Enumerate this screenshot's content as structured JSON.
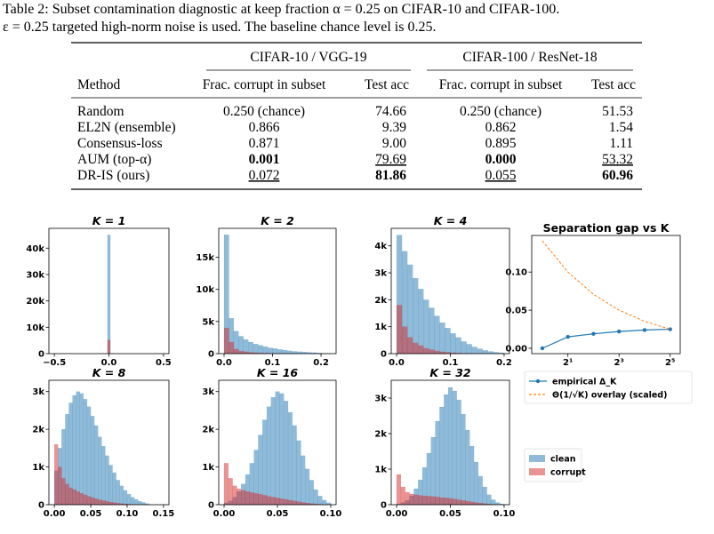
{
  "caption_lines": [
    "Table 2: Subset contamination diagnostic at keep fraction α = 0.25 on CIFAR-10 and CIFAR-100.",
    "ε = 0.25 targeted high-norm noise is used. The baseline chance level is 0.25."
  ],
  "table": {
    "groups": [
      "CIFAR-10 / VGG-19",
      "CIFAR-100 / ResNet-18"
    ],
    "header": [
      "Method",
      "Frac. corrupt in subset",
      "Test acc",
      "Frac. corrupt in subset",
      "Test acc"
    ],
    "rows": [
      [
        "Random",
        "0.250 (chance)",
        "74.66",
        "0.250 (chance)",
        "51.53"
      ],
      [
        "EL2N (ensemble)",
        "0.866",
        "9.39",
        "0.862",
        "1.54"
      ],
      [
        "Consensus-loss",
        "0.871",
        "9.00",
        "0.895",
        "1.11"
      ],
      [
        "AUM (top-α)",
        "0.001",
        "79.69",
        "0.000",
        "53.32"
      ],
      [
        "DR-IS (ours)",
        "0.072",
        "81.86",
        "0.055",
        "60.96"
      ]
    ],
    "bold": [
      [
        3,
        1
      ],
      [
        3,
        3
      ],
      [
        4,
        2
      ],
      [
        4,
        4
      ]
    ],
    "underline": [
      [
        3,
        2
      ],
      [
        3,
        4
      ],
      [
        4,
        1
      ],
      [
        4,
        3
      ]
    ]
  },
  "chart_data": [
    {
      "type": "histogram",
      "title": "K = 1",
      "alpha": 0.5,
      "bins": [
        -0.0125,
        0.0125
      ],
      "series": [
        {
          "color": "#1f77b4",
          "values": [
            45000
          ]
        },
        {
          "color": "#d62728",
          "values": [
            5200
          ]
        }
      ],
      "xlim": [
        -0.55,
        0.55
      ],
      "xticks": [
        {
          "value": -0.5,
          "label": "−0.5"
        },
        {
          "value": 0,
          "label": "0.0"
        },
        0.5
      ],
      "ylim": [
        0,
        47500
      ],
      "yticks": [
        0,
        {
          "value": 10000,
          "label": "10k"
        },
        {
          "value": 20000,
          "label": "20k"
        },
        {
          "value": 30000,
          "label": "30k"
        },
        {
          "value": 40000,
          "label": "40k"
        }
      ]
    },
    {
      "type": "histogram",
      "title": "K = 2",
      "alpha": 0.5,
      "bins": [
        0,
        0.01,
        0.02,
        0.03,
        0.04,
        0.05,
        0.06,
        0.07,
        0.08,
        0.09,
        0.1,
        0.11,
        0.12,
        0.13,
        0.14,
        0.15,
        0.16,
        0.17,
        0.18,
        0.19,
        0.2,
        0.21,
        0.22
      ],
      "series": [
        {
          "color": "#1f77b4",
          "values": [
            18500,
            5500,
            3500,
            2700,
            2200,
            1800,
            1500,
            1300,
            1100,
            900,
            800,
            650,
            550,
            450,
            350,
            300,
            250,
            200,
            150,
            100,
            60,
            30
          ]
        },
        {
          "color": "#d62728",
          "values": [
            4000,
            1800,
            700,
            400,
            300,
            200,
            150,
            100,
            80,
            60,
            40,
            30,
            20,
            10,
            5,
            0,
            0,
            0,
            0,
            0,
            0,
            0
          ]
        }
      ],
      "xlim": [
        -0.011,
        0.231
      ],
      "xticks": [
        {
          "value": 0,
          "label": "0.0"
        },
        0.1,
        0.2
      ],
      "ylim": [
        0,
        19500
      ],
      "yticks": [
        0,
        {
          "value": 5000,
          "label": "5k"
        },
        {
          "value": 10000,
          "label": "10k"
        },
        {
          "value": 15000,
          "label": "15k"
        }
      ]
    },
    {
      "type": "histogram",
      "title": "K = 4",
      "alpha": 0.5,
      "bins": [
        0,
        0.01,
        0.02,
        0.03,
        0.04,
        0.05,
        0.06,
        0.07,
        0.08,
        0.09,
        0.1,
        0.11,
        0.12,
        0.13,
        0.14,
        0.15,
        0.16,
        0.17,
        0.18,
        0.19,
        0.2
      ],
      "series": [
        {
          "color": "#1f77b4",
          "values": [
            4400,
            3800,
            3300,
            2800,
            2400,
            2000,
            1700,
            1400,
            1150,
            950,
            750,
            600,
            450,
            350,
            250,
            180,
            120,
            80,
            50,
            30
          ]
        },
        {
          "color": "#d62728",
          "values": [
            1800,
            1000,
            600,
            400,
            300,
            200,
            150,
            100,
            70,
            50,
            30,
            20,
            10,
            5,
            0,
            0,
            0,
            0,
            0,
            0
          ]
        }
      ],
      "xlim": [
        -0.01,
        0.21
      ],
      "xticks": [
        {
          "value": 0,
          "label": "0.0"
        },
        0.1,
        0.2
      ],
      "ylim": [
        0,
        4650
      ],
      "yticks": [
        0,
        {
          "value": 1000,
          "label": "1k"
        },
        {
          "value": 2000,
          "label": "2k"
        },
        {
          "value": 3000,
          "label": "3k"
        },
        {
          "value": 4000,
          "label": "4k"
        }
      ]
    },
    {
      "type": "histogram",
      "title": "K = 8",
      "alpha": 0.5,
      "bins": [
        0,
        0.005,
        0.01,
        0.015,
        0.02,
        0.025,
        0.03,
        0.035,
        0.04,
        0.045,
        0.05,
        0.055,
        0.06,
        0.065,
        0.07,
        0.075,
        0.08,
        0.085,
        0.09,
        0.095,
        0.1,
        0.105,
        0.11,
        0.115,
        0.12,
        0.125,
        0.13
      ],
      "series": [
        {
          "color": "#1f77b4",
          "values": [
            900,
            1500,
            2000,
            2400,
            2700,
            2900,
            3000,
            2950,
            2800,
            2600,
            2350,
            2100,
            1800,
            1550,
            1300,
            1050,
            850,
            650,
            500,
            380,
            280,
            200,
            140,
            90,
            60,
            30
          ]
        },
        {
          "color": "#d62728",
          "values": [
            1600,
            1000,
            700,
            550,
            450,
            400,
            350,
            300,
            260,
            220,
            190,
            160,
            130,
            110,
            90,
            70,
            55,
            40,
            30,
            20,
            15,
            10,
            5,
            3,
            2,
            1
          ]
        }
      ],
      "xlim": [
        -0.0075,
        0.1575
      ],
      "xticks": [
        {
          "value": 0,
          "label": "0.00"
        },
        0.05,
        {
          "value": 0.1,
          "label": "0.10"
        },
        0.15
      ],
      "ylim": [
        0,
        3300
      ],
      "yticks": [
        0,
        {
          "value": 1000,
          "label": "1k"
        },
        {
          "value": 2000,
          "label": "2k"
        },
        {
          "value": 3000,
          "label": "3k"
        }
      ]
    },
    {
      "type": "histogram",
      "title": "K = 16",
      "alpha": 0.5,
      "bins": [
        0,
        0.004,
        0.008,
        0.012,
        0.016,
        0.02,
        0.024,
        0.028,
        0.032,
        0.036,
        0.04,
        0.044,
        0.048,
        0.052,
        0.056,
        0.06,
        0.064,
        0.068,
        0.072,
        0.076,
        0.08,
        0.084,
        0.088,
        0.092,
        0.096,
        0.1
      ],
      "series": [
        {
          "color": "#1f77b4",
          "values": [
            50,
            100,
            200,
            350,
            550,
            800,
            1100,
            1450,
            1850,
            2250,
            2600,
            2850,
            3000,
            2950,
            2750,
            2450,
            2100,
            1700,
            1300,
            950,
            650,
            400,
            230,
            120,
            50
          ]
        },
        {
          "color": "#d62728",
          "values": [
            1100,
            700,
            500,
            420,
            380,
            350,
            320,
            300,
            280,
            250,
            220,
            200,
            180,
            160,
            140,
            120,
            100,
            80,
            60,
            45,
            30,
            20,
            10,
            5,
            2
          ]
        }
      ],
      "xlim": [
        -0.005,
        0.105
      ],
      "xticks": [
        {
          "value": 0,
          "label": "0.00"
        },
        0.05,
        {
          "value": 0.1,
          "label": "0.10"
        }
      ],
      "ylim": [
        0,
        3300
      ],
      "yticks": [
        0,
        {
          "value": 1000,
          "label": "1k"
        },
        {
          "value": 2000,
          "label": "2k"
        },
        {
          "value": 3000,
          "label": "3k"
        }
      ]
    },
    {
      "type": "histogram",
      "title": "K = 32",
      "alpha": 0.5,
      "legend": "right",
      "bins": [
        0,
        0.004,
        0.008,
        0.012,
        0.016,
        0.02,
        0.024,
        0.028,
        0.032,
        0.036,
        0.04,
        0.044,
        0.048,
        0.052,
        0.056,
        0.06,
        0.064,
        0.068,
        0.072,
        0.076,
        0.08,
        0.084,
        0.088,
        0.092,
        0.096,
        0.1
      ],
      "series": [
        {
          "name": "clean",
          "color": "#1f77b4",
          "values": [
            20,
            60,
            120,
            250,
            450,
            700,
            1050,
            1450,
            1900,
            2350,
            2750,
            3100,
            3300,
            3200,
            2950,
            2550,
            2100,
            1650,
            1200,
            800,
            500,
            280,
            140,
            60,
            20
          ]
        },
        {
          "name": "corrupt",
          "color": "#d62728",
          "values": [
            850,
            500,
            350,
            300,
            280,
            260,
            250,
            240,
            230,
            220,
            200,
            190,
            180,
            160,
            140,
            120,
            100,
            80,
            60,
            45,
            30,
            20,
            10,
            5,
            2
          ]
        }
      ],
      "xlim": [
        -0.005,
        0.105
      ],
      "xticks": [
        {
          "value": 0,
          "label": "0.00"
        },
        0.05,
        {
          "value": 0.1,
          "label": "0.10"
        }
      ],
      "ylim": [
        0,
        3500
      ],
      "yticks": [
        0,
        {
          "value": 1000,
          "label": "1k"
        },
        {
          "value": 2000,
          "label": "2k"
        },
        {
          "value": 3000,
          "label": "3k"
        }
      ]
    },
    {
      "type": "line",
      "title": "Separation gap vs K",
      "xscale": "log2",
      "legend": "below",
      "x": [
        1,
        2,
        4,
        8,
        16,
        32
      ],
      "series": [
        {
          "name": "empirical Δ_K",
          "color": "#1f77b4",
          "marker": "o",
          "linestyle": "solid",
          "values": [
            0.0,
            0.015,
            0.019,
            0.022,
            0.024,
            0.025
          ]
        },
        {
          "name": "Θ(1/√K) overlay (scaled)",
          "color": "#ff7f0e",
          "linestyle": "dashed",
          "values": [
            0.141,
            0.1,
            0.0707,
            0.05,
            0.0354,
            0.025
          ]
        }
      ],
      "xlim": [
        0.75,
        42
      ],
      "xticks": [
        {
          "value": 2,
          "label": "2¹"
        },
        {
          "value": 8,
          "label": "2³"
        },
        {
          "value": 32,
          "label": "2⁵"
        }
      ],
      "ylim": [
        -0.007,
        0.148
      ],
      "yticks": [
        {
          "value": 0,
          "label": "0.00"
        },
        0.05,
        {
          "value": 0.1,
          "label": "0.10"
        }
      ]
    }
  ]
}
